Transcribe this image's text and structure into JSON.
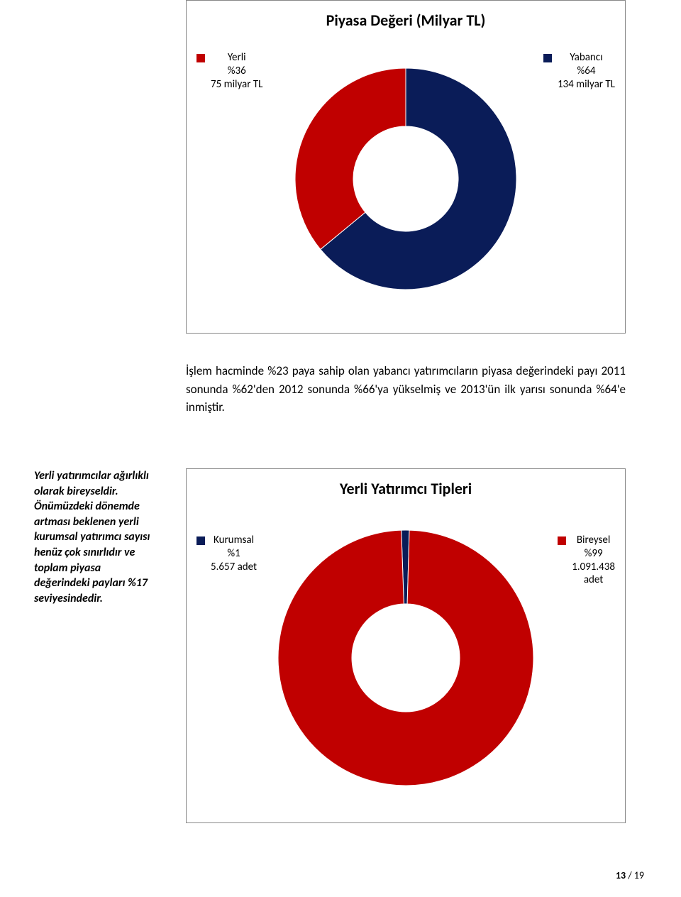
{
  "chart1": {
    "type": "donut",
    "title": "Piyasa Değeri (Milyar TL)",
    "title_fontsize": 22,
    "title_color": "#000000",
    "outer_radius": 156,
    "inner_radius": 74,
    "start_angle_deg": -90,
    "stroke_color": "#ffffff",
    "stroke_width": 1,
    "slices": [
      {
        "key": "yabanci",
        "value": 64,
        "color": "#0a1c58"
      },
      {
        "key": "yerli",
        "value": 36,
        "color": "#c00000"
      }
    ],
    "legend_left": {
      "marker_color": "#c00000",
      "lines": [
        "Yerli",
        "%36",
        "75 milyar TL"
      ]
    },
    "legend_right": {
      "marker_color": "#0a1c58",
      "lines": [
        "Yabancı",
        "%64",
        "134 milyar TL"
      ]
    },
    "legend_fontsize": 15
  },
  "paragraph": {
    "text": "İşlem hacminde %23 paya sahip olan yabancı yatırımcıların piyasa değerindeki payı 2011 sonunda %62'den 2012 sonunda %66'ya yükselmiş ve 2013'ün ilk yarısı sonunda %64'e inmiştir.",
    "fontsize": 17
  },
  "sidebar": {
    "text": "Yerli yatırımcılar ağırlıklı olarak bireyseldir. Önümüzdeki dönemde artması beklenen yerli kurumsal yatırımcı sayısı henüz çok sınırlıdır ve toplam piyasa değerindeki payları %17 seviyesindedir.",
    "fontsize": 16
  },
  "chart2": {
    "type": "donut",
    "title": "Yerli Yatırımcı Tipleri",
    "title_fontsize": 22,
    "title_color": "#000000",
    "outer_radius": 180,
    "inner_radius": 76,
    "start_angle_deg": -92,
    "stroke_color": "#ffffff",
    "stroke_width": 1,
    "slices": [
      {
        "key": "kurumsal",
        "value": 1,
        "color": "#0a1c58"
      },
      {
        "key": "bireysel",
        "value": 99,
        "color": "#c00000"
      }
    ],
    "legend_left": {
      "marker_color": "#0a1c58",
      "lines": [
        "Kurumsal",
        "%1",
        "5.657 adet"
      ]
    },
    "legend_right": {
      "marker_color": "#c00000",
      "lines": [
        "Bireysel",
        "%99",
        "1.091.438",
        "adet"
      ]
    },
    "legend_fontsize": 15
  },
  "footer": {
    "current": "13",
    "separator": " / ",
    "total": "19",
    "fontsize": 14
  }
}
